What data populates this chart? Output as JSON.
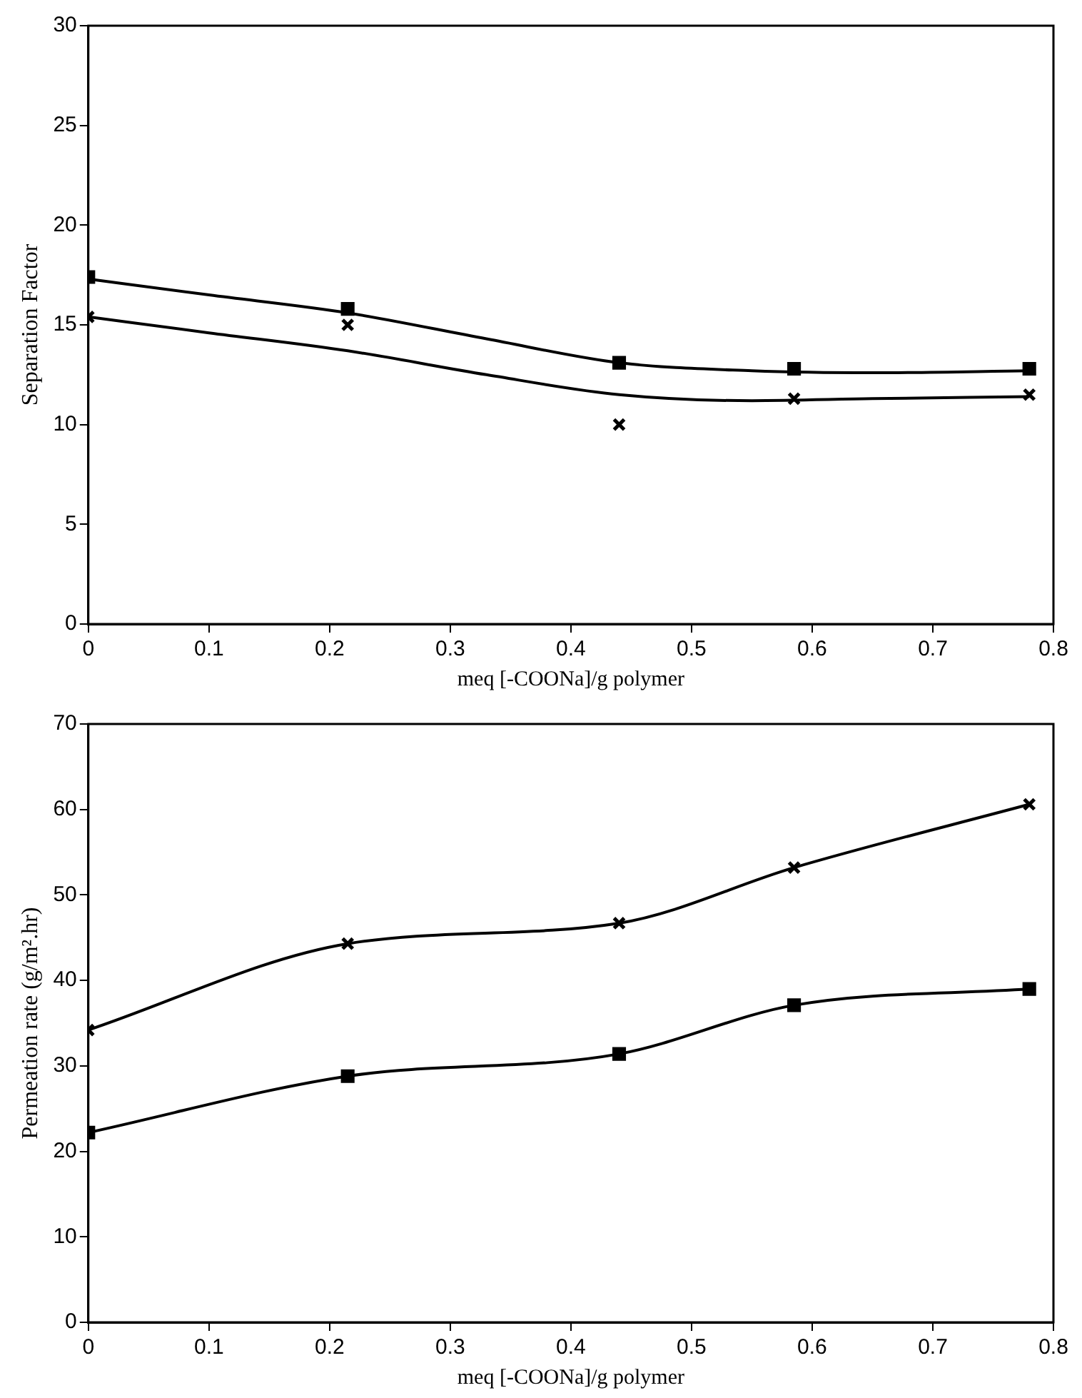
{
  "chart_data": [
    {
      "type": "scatter",
      "xlabel": "meq [-COONa]/g polymer",
      "ylabel": "Separation Factor",
      "xlim": [
        0,
        0.8
      ],
      "xticks": [
        0,
        0.1,
        0.2,
        0.3,
        0.4,
        0.5,
        0.6,
        0.7,
        0.8
      ],
      "ylim": [
        0,
        30
      ],
      "yticks": [
        0,
        5,
        10,
        15,
        20,
        25,
        30
      ],
      "grid": false,
      "legend": false,
      "series": [
        {
          "type": "scatter",
          "color": "#000000",
          "marker": "square",
          "x": [
            0,
            0.215,
            0.44,
            0.585,
            0.78
          ],
          "values": [
            17.4,
            15.8,
            13.1,
            12.8,
            12.8
          ]
        },
        {
          "type": "scatter",
          "color": "#000000",
          "marker": "cross",
          "x": [
            0,
            0.215,
            0.44,
            0.585,
            0.78
          ],
          "values": [
            15.4,
            15.0,
            10.0,
            11.3,
            11.5
          ]
        },
        {
          "type": "line",
          "color": "#000000",
          "marker": "none",
          "x": [
            0,
            0.1,
            0.215,
            0.33,
            0.44,
            0.55,
            0.65,
            0.78
          ],
          "values": [
            17.3,
            16.5,
            15.6,
            14.3,
            13.1,
            12.7,
            12.6,
            12.7
          ]
        },
        {
          "type": "line",
          "color": "#000000",
          "marker": "none",
          "x": [
            0,
            0.1,
            0.215,
            0.33,
            0.44,
            0.55,
            0.65,
            0.78
          ],
          "values": [
            15.4,
            14.6,
            13.7,
            12.5,
            11.5,
            11.2,
            11.3,
            11.4
          ]
        }
      ]
    },
    {
      "type": "line",
      "xlabel": "meq [-COONa]/g polymer",
      "ylabel": "Permeation rate (g/m².hr)",
      "xlim": [
        0,
        0.8
      ],
      "xticks": [
        0,
        0.1,
        0.2,
        0.3,
        0.4,
        0.5,
        0.6,
        0.7,
        0.8
      ],
      "ylim": [
        0,
        70
      ],
      "yticks": [
        0,
        10,
        20,
        30,
        40,
        50,
        60,
        70
      ],
      "grid": false,
      "legend": false,
      "series": [
        {
          "color": "#000000",
          "marker": "cross",
          "x": [
            0,
            0.215,
            0.44,
            0.585,
            0.78
          ],
          "values": [
            34.2,
            44.3,
            46.7,
            53.2,
            60.6
          ]
        },
        {
          "color": "#000000",
          "marker": "square",
          "x": [
            0,
            0.215,
            0.44,
            0.585,
            0.78
          ],
          "values": [
            22.2,
            28.8,
            31.4,
            37.1,
            39.0
          ]
        }
      ]
    }
  ]
}
